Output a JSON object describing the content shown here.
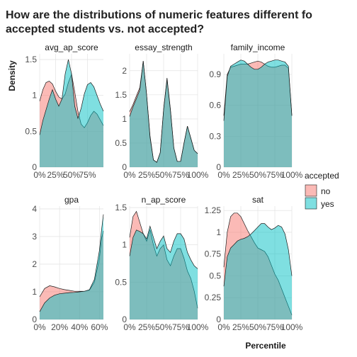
{
  "title_line1": "How are the distributions of numeric features different fo",
  "title_line2": "accepted students vs. not accepted?",
  "ylabel": "Density",
  "xlabel": "Percentile",
  "legend": {
    "title": "accepted",
    "items": [
      {
        "label": "no",
        "color": "#F8766D"
      },
      {
        "label": "yes",
        "color": "#00BFC4"
      }
    ]
  },
  "chart_data": [
    {
      "type": "area",
      "title": "avg_ap_score",
      "x": [
        0,
        5,
        10,
        15,
        20,
        25,
        30,
        35,
        40,
        45,
        50,
        55,
        60,
        65,
        70,
        75,
        80,
        85,
        90,
        95,
        100
      ],
      "xticks": [
        {
          "v": 0,
          "label": "0%"
        },
        {
          "v": 25,
          "label": "25%"
        },
        {
          "v": 50,
          "label": "50%"
        },
        {
          "v": 75,
          "label": "75%"
        }
      ],
      "yticks": [
        0,
        0.5,
        1,
        1.5
      ],
      "ylim": [
        0,
        1.58
      ],
      "series": [
        {
          "name": "no",
          "values": [
            0.92,
            1.08,
            1.18,
            1.2,
            1.16,
            1.06,
            0.98,
            0.95,
            1.02,
            1.18,
            1.3,
            1.05,
            0.78,
            0.6,
            0.55,
            0.62,
            0.72,
            0.78,
            0.74,
            0.66,
            0.58
          ]
        },
        {
          "name": "yes",
          "values": [
            0.45,
            0.65,
            0.8,
            0.95,
            1.08,
            0.95,
            0.85,
            0.95,
            1.3,
            1.5,
            1.3,
            0.85,
            0.68,
            0.82,
            1.02,
            1.15,
            1.18,
            1.12,
            1.0,
            0.88,
            0.78
          ]
        }
      ]
    },
    {
      "type": "area",
      "title": "essay_strength",
      "x": [
        0,
        5,
        10,
        15,
        20,
        25,
        30,
        35,
        40,
        45,
        50,
        55,
        60,
        65,
        70,
        75,
        80,
        85,
        90,
        95,
        100
      ],
      "xticks": [
        {
          "v": 0,
          "label": "0%"
        },
        {
          "v": 25,
          "label": "25%"
        },
        {
          "v": 50,
          "label": "50%"
        },
        {
          "v": 75,
          "label": "75%"
        },
        {
          "v": 100,
          "label": "100%"
        }
      ],
      "yticks": [
        0,
        0.5,
        1,
        1.5,
        2
      ],
      "ylim": [
        0,
        2.35
      ],
      "series": [
        {
          "name": "no",
          "values": [
            1.15,
            1.3,
            1.48,
            1.65,
            2.2,
            1.5,
            0.65,
            0.15,
            0.1,
            0.3,
            1.2,
            1.85,
            1.2,
            0.4,
            0.12,
            0.12,
            0.5,
            0.85,
            0.6,
            0.35,
            0.28
          ]
        },
        {
          "name": "yes",
          "values": [
            1.05,
            1.25,
            1.42,
            1.6,
            2.2,
            1.5,
            0.62,
            0.15,
            0.1,
            0.3,
            1.2,
            1.82,
            1.18,
            0.4,
            0.12,
            0.12,
            0.5,
            0.85,
            0.6,
            0.35,
            0.28
          ]
        }
      ]
    },
    {
      "type": "area",
      "title": "family_income",
      "x": [
        0,
        5,
        10,
        15,
        20,
        25,
        30,
        35,
        40,
        45,
        50,
        55,
        60,
        65,
        70,
        75,
        80,
        85,
        90,
        95,
        100
      ],
      "xticks": [
        {
          "v": 0,
          "label": "0%"
        },
        {
          "v": 25,
          "label": "25%"
        },
        {
          "v": 50,
          "label": "50%"
        },
        {
          "v": 75,
          "label": "75%"
        },
        {
          "v": 100,
          "label": "100%"
        }
      ],
      "yticks": [
        0,
        0.3,
        0.6,
        0.9
      ],
      "ylim": [
        0,
        1.1
      ],
      "series": [
        {
          "name": "no",
          "values": [
            0.5,
            0.9,
            0.97,
            0.98,
            0.99,
            1.0,
            1.0,
            1.0,
            1.01,
            1.02,
            1.03,
            1.02,
            1.0,
            0.98,
            0.97,
            0.97,
            0.98,
            0.99,
            0.99,
            0.96,
            0.5
          ]
        },
        {
          "name": "yes",
          "values": [
            0.45,
            0.88,
            0.98,
            1.0,
            1.02,
            1.04,
            1.03,
            1.0,
            0.97,
            0.95,
            0.95,
            0.97,
            1.0,
            1.02,
            1.03,
            1.04,
            1.04,
            1.03,
            1.02,
            0.98,
            0.5
          ]
        }
      ]
    },
    {
      "type": "area",
      "title": "gpa",
      "x": [
        0,
        5,
        10,
        15,
        20,
        25,
        30,
        35,
        40,
        45,
        50,
        55,
        60,
        62,
        64
      ],
      "xticks": [
        {
          "v": 0,
          "label": "0%"
        },
        {
          "v": 20,
          "label": "20%"
        },
        {
          "v": 40,
          "label": "40%"
        },
        {
          "v": 60,
          "label": "60%"
        }
      ],
      "yticks": [
        0,
        1,
        2,
        3,
        4
      ],
      "ylim": [
        0,
        4.1
      ],
      "series": [
        {
          "name": "no",
          "values": [
            0.82,
            1.12,
            1.22,
            1.18,
            1.12,
            1.08,
            1.05,
            1.02,
            1.02,
            1.02,
            1.06,
            1.35,
            2.2,
            2.9,
            3.2
          ]
        },
        {
          "name": "yes",
          "values": [
            0.28,
            0.6,
            0.78,
            0.88,
            0.93,
            0.95,
            0.97,
            0.98,
            1.0,
            1.02,
            1.08,
            1.45,
            2.5,
            3.2,
            3.8
          ]
        }
      ]
    },
    {
      "type": "area",
      "title": "n_ap_score",
      "x": [
        0,
        5,
        10,
        15,
        20,
        25,
        30,
        35,
        40,
        45,
        50,
        55,
        60,
        65,
        70,
        75,
        80,
        85,
        90,
        95,
        100
      ],
      "xticks": [
        {
          "v": 0,
          "label": "0%"
        },
        {
          "v": 25,
          "label": "25%"
        },
        {
          "v": 50,
          "label": "50%"
        },
        {
          "v": 75,
          "label": "75%"
        },
        {
          "v": 100,
          "label": "100%"
        }
      ],
      "yticks": [
        0,
        0.5,
        1,
        1.5
      ],
      "ylim": [
        0,
        1.52
      ],
      "series": [
        {
          "name": "no",
          "values": [
            1.1,
            1.38,
            1.45,
            1.3,
            1.15,
            1.05,
            1.2,
            1.0,
            0.85,
            0.95,
            1.0,
            0.8,
            0.72,
            0.85,
            0.95,
            0.95,
            0.82,
            0.65,
            0.55,
            0.38,
            0.15
          ]
        },
        {
          "name": "yes",
          "values": [
            0.85,
            1.1,
            1.2,
            1.18,
            1.15,
            1.08,
            1.25,
            1.1,
            0.95,
            1.05,
            1.12,
            0.95,
            0.9,
            1.05,
            1.15,
            1.15,
            1.08,
            0.9,
            0.8,
            0.72,
            0.68
          ]
        }
      ]
    },
    {
      "type": "area",
      "title": "sat",
      "x": [
        0,
        5,
        10,
        15,
        20,
        25,
        30,
        35,
        40,
        45,
        50,
        55,
        60,
        65,
        70,
        75,
        80,
        85,
        90,
        95,
        100
      ],
      "xticks": [
        {
          "v": 0,
          "label": "0%"
        },
        {
          "v": 25,
          "label": "25%"
        },
        {
          "v": 50,
          "label": "50%"
        },
        {
          "v": 75,
          "label": "75%"
        },
        {
          "v": 100,
          "label": "100%"
        }
      ],
      "yticks": [
        0,
        0.25,
        0.5,
        0.75,
        1.0,
        1.25
      ],
      "ylim": [
        0,
        1.3
      ],
      "series": [
        {
          "name": "no",
          "values": [
            0.6,
            1.0,
            1.18,
            1.22,
            1.22,
            1.18,
            1.1,
            1.02,
            0.95,
            0.88,
            0.82,
            0.8,
            0.78,
            0.72,
            0.62,
            0.52,
            0.45,
            0.35,
            0.25,
            0.15,
            0.05
          ]
        },
        {
          "name": "yes",
          "values": [
            0.38,
            0.72,
            0.82,
            0.86,
            0.9,
            0.92,
            0.93,
            0.95,
            0.98,
            1.02,
            1.06,
            1.1,
            1.1,
            1.06,
            1.03,
            1.05,
            1.08,
            1.06,
            0.98,
            0.8,
            0.5
          ]
        }
      ]
    }
  ]
}
